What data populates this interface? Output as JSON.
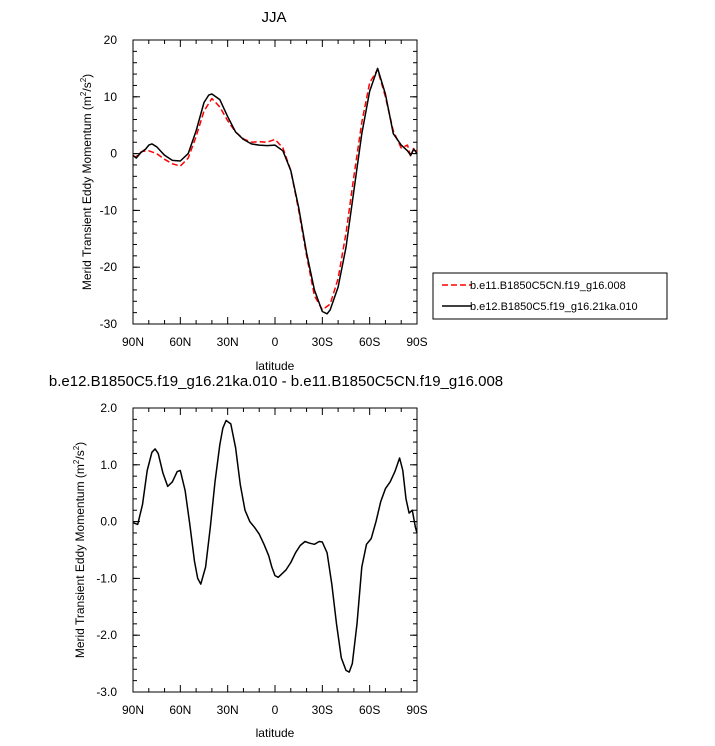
{
  "chart_data": [
    {
      "type": "line",
      "title": "JJA",
      "xlabel": "latitude",
      "ylabel": "Merid Transient Eddy Momentum (m²/s²)",
      "ylabel_main": "Merid Transient Eddy Momentum (m",
      "ylabel_unit": "/s",
      "xlim": [
        90,
        -90
      ],
      "ylim": [
        -30,
        20
      ],
      "x_ticks": [
        90,
        60,
        30,
        0,
        -30,
        -60,
        -90
      ],
      "x_tick_labels": [
        "90N",
        "60N",
        "30N",
        "0",
        "30S",
        "60S",
        "90S"
      ],
      "y_ticks": [
        20,
        10,
        0,
        -10,
        -20,
        -30
      ],
      "y_tick_labels": [
        "20",
        "10",
        "0",
        "-10",
        "-20",
        "-30"
      ],
      "legend_position": "right",
      "series": [
        {
          "name": "b.e11.B1850C5CN.f19_g16.008",
          "color": "#ff0000",
          "dash": "dashed",
          "x": [
            90,
            88,
            86,
            84,
            80,
            75,
            70,
            65,
            60,
            55,
            50,
            45,
            40,
            35,
            30,
            25,
            20,
            15,
            10,
            5,
            0,
            -5,
            -10,
            -15,
            -20,
            -25,
            -30,
            -35,
            -40,
            -45,
            -50,
            -55,
            -60,
            -65,
            -70,
            -75,
            -80,
            -84,
            -86,
            -88,
            -90
          ],
          "values": [
            -0.4,
            -0.6,
            0.1,
            0.4,
            0.5,
            0.0,
            -1.0,
            -1.8,
            -2.2,
            -0.8,
            3.0,
            7.5,
            9.7,
            8.2,
            5.8,
            3.8,
            2.6,
            2.0,
            2.1,
            2.0,
            2.5,
            1.0,
            -3.0,
            -10.0,
            -18.0,
            -25.0,
            -27.5,
            -26.5,
            -22.0,
            -14.0,
            -4.0,
            5.5,
            12.5,
            14.8,
            10.0,
            4.0,
            1.0,
            1.5,
            -0.5,
            1.0,
            0.2
          ]
        },
        {
          "name": "b.e12.B1850C5.f19_g16.21ka.010",
          "color": "#000000",
          "dash": "solid",
          "x": [
            90,
            88,
            85,
            82,
            80,
            78,
            75,
            72,
            70,
            65,
            60,
            55,
            50,
            45,
            42,
            40,
            35,
            30,
            25,
            20,
            15,
            10,
            5,
            0,
            -5,
            -10,
            -15,
            -20,
            -25,
            -30,
            -33,
            -35,
            -40,
            -45,
            -50,
            -55,
            -60,
            -65,
            -70,
            -75,
            -80,
            -84,
            -86,
            -88,
            -90
          ],
          "values": [
            -0.3,
            -0.8,
            0.2,
            0.8,
            1.5,
            1.7,
            1.2,
            0.3,
            -0.3,
            -1.2,
            -1.3,
            0.0,
            4.0,
            9.0,
            10.3,
            10.5,
            9.5,
            6.5,
            3.8,
            2.5,
            1.7,
            1.5,
            1.4,
            1.5,
            0.5,
            -3.0,
            -9.5,
            -17.5,
            -24.0,
            -27.8,
            -28.2,
            -27.5,
            -23.5,
            -16.5,
            -6.5,
            3.5,
            11.0,
            15.0,
            10.5,
            3.5,
            1.5,
            0.5,
            -0.3,
            0.8,
            0.0
          ]
        }
      ]
    },
    {
      "type": "line",
      "title": "b.e12.B1850C5.f19_g16.21ka.010 - b.e11.B1850C5CN.f19_g16.008",
      "xlabel": "latitude",
      "ylabel": "Merid Transient Eddy Momentum (m²/s²)",
      "ylabel_main": "Merid Transient Eddy Momentum (m",
      "ylabel_unit": "/s",
      "xlim": [
        90,
        -90
      ],
      "ylim": [
        -3.0,
        2.0
      ],
      "x_ticks": [
        90,
        60,
        30,
        0,
        -30,
        -60,
        -90
      ],
      "x_tick_labels": [
        "90N",
        "60N",
        "30N",
        "0",
        "30S",
        "60S",
        "90S"
      ],
      "y_ticks": [
        2.0,
        1.0,
        0.0,
        -1.0,
        -2.0,
        -3.0
      ],
      "y_tick_labels": [
        "2.0",
        "1.0",
        "0.0",
        "-1.0",
        "-2.0",
        "-3.0"
      ],
      "series": [
        {
          "color": "#000000",
          "dash": "solid",
          "x": [
            90,
            87,
            84,
            81,
            78,
            76,
            74,
            71,
            68,
            65,
            62,
            60,
            57,
            54,
            51,
            49,
            47,
            44,
            41,
            38,
            35,
            33,
            31,
            28,
            25,
            22,
            19,
            16,
            13,
            10,
            7,
            4,
            2,
            0,
            -2,
            -4,
            -7,
            -10,
            -13,
            -16,
            -19,
            -22,
            -25,
            -28,
            -30,
            -33,
            -36,
            -39,
            -42,
            -45,
            -47,
            -49,
            -52,
            -55,
            -58,
            -61,
            -64,
            -67,
            -70,
            -73,
            -76,
            -79,
            -81,
            -83,
            -85,
            -87,
            -89,
            -90
          ],
          "values": [
            -0.02,
            -0.05,
            0.3,
            0.9,
            1.22,
            1.28,
            1.2,
            0.85,
            0.62,
            0.7,
            0.88,
            0.9,
            0.55,
            -0.05,
            -0.7,
            -1.0,
            -1.1,
            -0.8,
            -0.1,
            0.7,
            1.35,
            1.65,
            1.78,
            1.72,
            1.3,
            0.65,
            0.2,
            0.0,
            -0.1,
            -0.22,
            -0.4,
            -0.6,
            -0.8,
            -0.95,
            -0.98,
            -0.93,
            -0.85,
            -0.72,
            -0.55,
            -0.42,
            -0.35,
            -0.38,
            -0.4,
            -0.35,
            -0.36,
            -0.55,
            -1.1,
            -1.8,
            -2.4,
            -2.62,
            -2.65,
            -2.5,
            -1.8,
            -0.8,
            -0.4,
            -0.3,
            0.0,
            0.35,
            0.58,
            0.7,
            0.88,
            1.12,
            0.9,
            0.4,
            0.15,
            0.2,
            -0.1,
            -0.2
          ]
        }
      ]
    }
  ]
}
